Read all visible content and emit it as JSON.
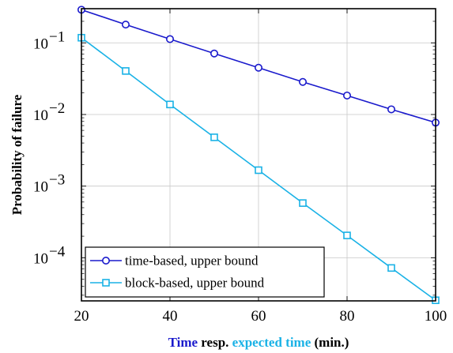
{
  "chart_data": {
    "type": "line",
    "title": "",
    "xlabel_parts": [
      {
        "text": "Time",
        "color": "#1a1acc"
      },
      {
        "text": " resp. ",
        "color": "#000000"
      },
      {
        "text": "expected time",
        "color": "#1ab2e6"
      },
      {
        "text": " (min.)",
        "color": "#000000"
      }
    ],
    "ylabel": "Probability of failure",
    "xlim": [
      20,
      100
    ],
    "ylim": [
      2.5e-05,
      0.3
    ],
    "yscale": "log",
    "grid": true,
    "legend_position": "bottom-left",
    "xticks": [
      20,
      40,
      60,
      80,
      100
    ],
    "xtick_labels": [
      "20",
      "40",
      "60",
      "80",
      "100"
    ],
    "yticks": [
      {
        "value": 0.1,
        "base": "10",
        "exp": "−1"
      },
      {
        "value": 0.01,
        "base": "10",
        "exp": "−2"
      },
      {
        "value": 0.001,
        "base": "10",
        "exp": "−3"
      },
      {
        "value": 0.0001,
        "base": "10",
        "exp": "−4"
      }
    ],
    "x": [
      20,
      30,
      40,
      50,
      60,
      70,
      80,
      90,
      100
    ],
    "series": [
      {
        "name": "time-based, upper bound",
        "color": "#1a1acc",
        "marker": "circle",
        "values": [
          0.29,
          0.18,
          0.113,
          0.071,
          0.045,
          0.0285,
          0.0184,
          0.0118,
          0.0077
        ]
      },
      {
        "name": "block-based, upper bound",
        "color": "#1ab2e6",
        "marker": "square",
        "values": [
          0.118,
          0.0405,
          0.0138,
          0.0048,
          0.00167,
          0.00058,
          0.000205,
          7.2e-05,
          2.55e-05
        ]
      }
    ]
  }
}
